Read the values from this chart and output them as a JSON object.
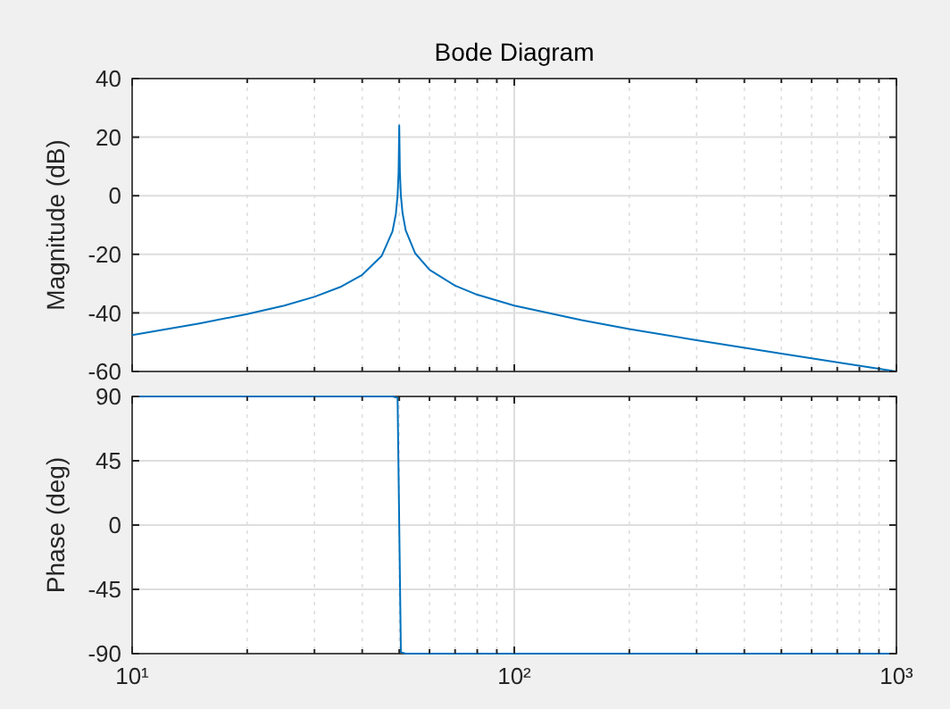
{
  "chart_data": [
    {
      "type": "line",
      "title": "Bode Diagram",
      "ylabel": "Magnitude (dB)",
      "log": "x",
      "grid": true,
      "tick_labels": "y",
      "marker": "none",
      "line_style": "solid",
      "x": [
        10,
        15,
        20,
        25,
        30,
        35,
        40,
        45,
        48,
        49,
        49.5,
        49.8,
        50,
        50.2,
        50.5,
        51,
        52,
        55,
        60,
        70,
        80,
        100,
        150,
        200,
        300,
        500,
        700,
        1000
      ],
      "series": [
        {
          "color": "#0072bd",
          "values": [
            -47.6,
            -43.6,
            -40.4,
            -37.5,
            -34.5,
            -31.2,
            -27,
            -20.5,
            -12.2,
            -6.1,
            0,
            7.9,
            24,
            8,
            0,
            -5.9,
            -11.9,
            -19.6,
            -25.3,
            -30.7,
            -33.8,
            -37.5,
            -42.5,
            -45.5,
            -49.3,
            -53.9,
            -56.9,
            -60
          ]
        }
      ],
      "xlim": [
        10,
        1000
      ],
      "ylim": [
        -60,
        40
      ],
      "yticks": [
        -60,
        -40,
        -20,
        0,
        20,
        40
      ],
      "xticks": [
        10,
        {
          "value": 20,
          "label": null
        },
        {
          "value": 30,
          "label": null
        },
        {
          "value": 40,
          "label": null
        },
        {
          "value": 50,
          "label": null
        },
        {
          "value": 60,
          "label": null
        },
        {
          "value": 70,
          "label": null
        },
        {
          "value": 80,
          "label": null
        },
        {
          "value": 90,
          "label": null
        },
        100,
        {
          "value": 200,
          "label": null
        },
        {
          "value": 300,
          "label": null
        },
        {
          "value": 400,
          "label": null
        },
        {
          "value": 500,
          "label": null
        },
        {
          "value": 600,
          "label": null
        },
        {
          "value": 700,
          "label": null
        },
        {
          "value": 800,
          "label": null
        },
        {
          "value": 900,
          "label": null
        },
        1000
      ]
    },
    {
      "type": "line",
      "ylabel": "Phase (deg)",
      "log": "x",
      "grid": true,
      "marker": "none",
      "line_style": "solid",
      "x": [
        10,
        48,
        49.5,
        50.5,
        52,
        1000
      ],
      "series": [
        {
          "color": "#0072bd",
          "values": [
            90,
            90,
            89,
            -89,
            -90,
            -90
          ]
        }
      ],
      "xlim": [
        10,
        1000
      ],
      "ylim": [
        -90,
        90
      ],
      "yticks": [
        -90,
        -45,
        0,
        45,
        90
      ],
      "xticks": [
        {
          "value": 10,
          "label": "10¹"
        },
        {
          "value": 20,
          "label": null
        },
        {
          "value": 30,
          "label": null
        },
        {
          "value": 40,
          "label": null
        },
        {
          "value": 50,
          "label": null
        },
        {
          "value": 60,
          "label": null
        },
        {
          "value": 70,
          "label": null
        },
        {
          "value": 80,
          "label": null
        },
        {
          "value": 90,
          "label": null
        },
        {
          "value": 100,
          "label": "10²"
        },
        {
          "value": 200,
          "label": null
        },
        {
          "value": 300,
          "label": null
        },
        {
          "value": 400,
          "label": null
        },
        {
          "value": 500,
          "label": null
        },
        {
          "value": 600,
          "label": null
        },
        {
          "value": 700,
          "label": null
        },
        {
          "value": 800,
          "label": null
        },
        {
          "value": 900,
          "label": null
        },
        {
          "value": 1000,
          "label": "10³"
        }
      ]
    }
  ]
}
